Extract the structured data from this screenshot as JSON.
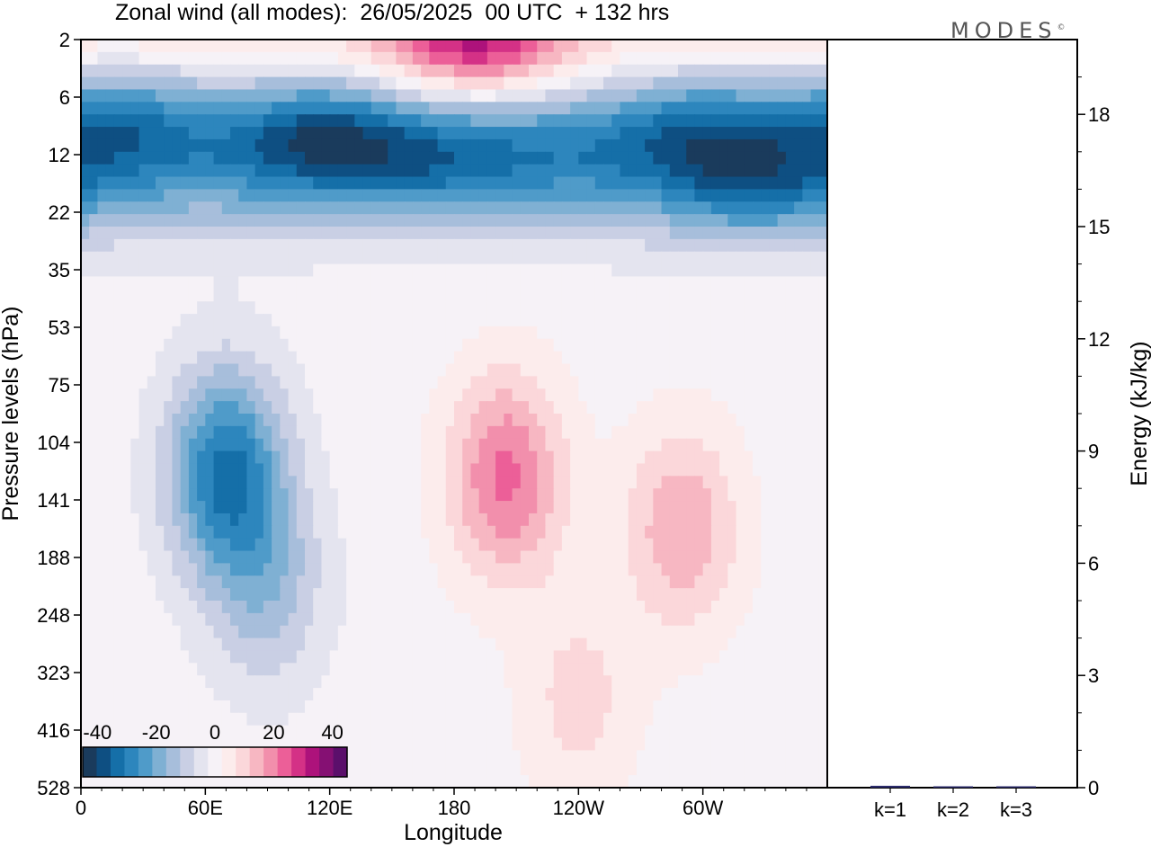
{
  "header": {
    "title": "Zonal wind (all modes):  26/05/2025  00 UTC  + 132 hrs",
    "brand": "MODES",
    "brand_mark": "©"
  },
  "colors": {
    "scale": [
      "#1a3b5c",
      "#0e4f82",
      "#156fa8",
      "#2d86bd",
      "#4f9bc9",
      "#7fb0d3",
      "#a7bedb",
      "#c9cfe4",
      "#e4e4ef",
      "#f6f2f7",
      "#fcecec",
      "#fbd7da",
      "#f7b7c2",
      "#f28fac",
      "#ec5f98",
      "#d43186",
      "#ad127b",
      "#851073",
      "#5b0f6b"
    ],
    "frame": "#000000"
  },
  "chart_data": [
    {
      "type": "heatmap",
      "title": "Zonal wind (all modes):  26/05/2025  00 UTC  + 132 hrs",
      "xlabel": "Longitude",
      "ylabel": "Pressure levels (hPa)",
      "x_ticks": [
        "0",
        "60E",
        "120E",
        "180",
        "120W",
        "60W"
      ],
      "y_ticks": [
        "2",
        "6",
        "12",
        "22",
        "35",
        "53",
        "75",
        "104",
        "141",
        "188",
        "248",
        "323",
        "416",
        "528"
      ],
      "colorbar": {
        "ticks": [
          "-40",
          "-20",
          "0",
          "20",
          "40"
        ],
        "range": [
          -45,
          45
        ],
        "step": 5
      },
      "features": [
        {
          "lon": 20,
          "level_index": 1.4,
          "value": -30
        },
        {
          "lon": 115,
          "level_index": 1.6,
          "value": -35
        },
        {
          "lon": 170,
          "level_index": 2.0,
          "value": -22
        },
        {
          "lon": 230,
          "level_index": 1.7,
          "value": -18
        },
        {
          "lon": 300,
          "level_index": 1.5,
          "value": -30
        },
        {
          "lon": 325,
          "level_index": 2.6,
          "value": -25
        },
        {
          "lon": 190,
          "level_index": 0.1,
          "value": 20
        },
        {
          "lon": 70,
          "level_index": 7.5,
          "value": -35
        },
        {
          "lon": 90,
          "level_index": 9.5,
          "value": -15
        },
        {
          "lon": 205,
          "level_index": 7.6,
          "value": 25
        },
        {
          "lon": 290,
          "level_index": 8.5,
          "value": 18
        },
        {
          "lon": 240,
          "level_index": 11.5,
          "value": 10
        }
      ]
    },
    {
      "type": "bar",
      "categories": [
        "k=1",
        "k=2",
        "k=3"
      ],
      "values": [
        0.05,
        0.03,
        0.03
      ],
      "ylabel": "Energy (kJ/kg)",
      "ylim": [
        0,
        20
      ],
      "y_ticks": [
        "0",
        "3",
        "6",
        "9",
        "12",
        "15",
        "18"
      ]
    }
  ]
}
